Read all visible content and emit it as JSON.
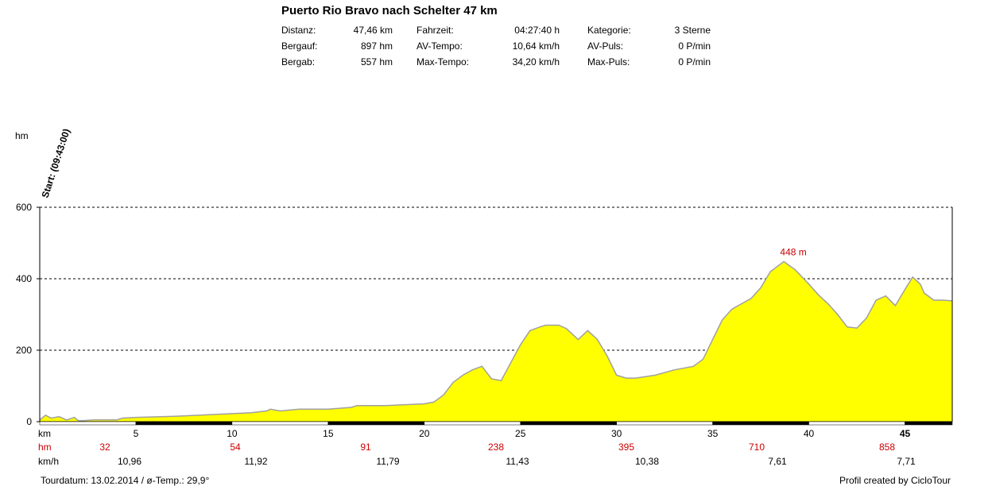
{
  "header": {
    "title": "Puerto Rio Bravo nach Schelter 47 km",
    "stats": [
      {
        "label": "Distanz:",
        "value": "47,46 km"
      },
      {
        "label": "Bergauf:",
        "value": "897 hm"
      },
      {
        "label": "Bergab:",
        "value": "557 hm"
      },
      {
        "label": "Fahrzeit:",
        "value": "04:27:40 h"
      },
      {
        "label": "AV-Tempo:",
        "value": "10,64 km/h"
      },
      {
        "label": "Max-Tempo:",
        "value": "34,20 km/h"
      },
      {
        "label": "Kategorie:",
        "value": "3 Sterne"
      },
      {
        "label": "AV-Puls:",
        "value": "0 P/min"
      },
      {
        "label": "Max-Puls:",
        "value": "0 P/min"
      }
    ]
  },
  "chart_data": {
    "type": "area",
    "ylabel": "hm",
    "xlabel": "km",
    "xlim": [
      0,
      47.46
    ],
    "ylim": [
      0,
      600
    ],
    "yticks": [
      0,
      200,
      400,
      600
    ],
    "xticks": [
      5,
      10,
      15,
      20,
      25,
      30,
      35,
      40,
      45
    ],
    "grid": "horizontal-dashed",
    "start_label": "Start: (09:43:00)",
    "max_annotation": {
      "x": 38.7,
      "y": 448,
      "label": "448 m"
    },
    "fill_color": "#ffff00",
    "line_color": "#a0a0a0",
    "x": [
      0,
      0.3,
      0.6,
      1.0,
      1.4,
      1.8,
      2.0,
      2.3,
      2.8,
      4.0,
      4.3,
      5.0,
      7.0,
      9.0,
      11.0,
      11.8,
      12.0,
      12.5,
      13.5,
      15.0,
      16.2,
      16.5,
      18.0,
      20.0,
      20.5,
      21.0,
      21.5,
      22.0,
      22.5,
      23.0,
      23.5,
      24.0,
      24.6,
      25.0,
      25.5,
      26.0,
      26.3,
      27.0,
      27.4,
      28.0,
      28.5,
      29.0,
      29.5,
      30.0,
      30.5,
      31.0,
      32.0,
      33.0,
      34.0,
      34.5,
      35.0,
      35.5,
      36.0,
      36.5,
      37.0,
      37.5,
      38.0,
      38.7,
      39.3,
      40.0,
      40.5,
      41.0,
      41.5,
      42.0,
      42.5,
      43.0,
      43.5,
      44.0,
      44.5,
      45.0,
      45.4,
      45.8,
      46.0,
      46.5,
      47.0,
      47.46
    ],
    "elevation": [
      5,
      18,
      10,
      14,
      5,
      12,
      3,
      3,
      5,
      5,
      10,
      12,
      15,
      20,
      25,
      30,
      35,
      30,
      35,
      35,
      40,
      45,
      45,
      50,
      55,
      75,
      110,
      130,
      145,
      155,
      120,
      115,
      175,
      215,
      255,
      265,
      270,
      270,
      260,
      230,
      255,
      230,
      185,
      130,
      122,
      122,
      130,
      145,
      155,
      175,
      230,
      285,
      315,
      330,
      345,
      375,
      420,
      448,
      425,
      385,
      355,
      330,
      300,
      265,
      262,
      290,
      340,
      352,
      325,
      370,
      405,
      385,
      360,
      340,
      340,
      338
    ],
    "markers_hm": [
      {
        "x": 2.5,
        "label": "32"
      },
      {
        "x": 7.5,
        "label": "54"
      },
      {
        "x": 12.5,
        "label": "91"
      },
      {
        "x": 17.5,
        "label": "238"
      },
      {
        "x": 22.5,
        "label": "395"
      },
      {
        "x": 27.5,
        "label": "710"
      },
      {
        "x": 32.5,
        "label": "858"
      }
    ],
    "speeds_kmh": [
      {
        "x": 5,
        "label": "10,96"
      },
      {
        "x": 11,
        "label": "11,92"
      },
      {
        "x": 16,
        "label": "11,79"
      },
      {
        "x": 25,
        "label": "11,43"
      },
      {
        "x": 30,
        "label": "10,38"
      },
      {
        "x": 35,
        "label": "7,61"
      },
      {
        "x": 40,
        "label": "7,71"
      }
    ],
    "row_labels": {
      "km": "km",
      "hm": "hm",
      "kmh": "km/h"
    }
  },
  "footer": {
    "left": "Tourdatum: 13.02.2014  /  ø-Temp.: 29,9°",
    "right": "Profil created by CicloTour"
  }
}
